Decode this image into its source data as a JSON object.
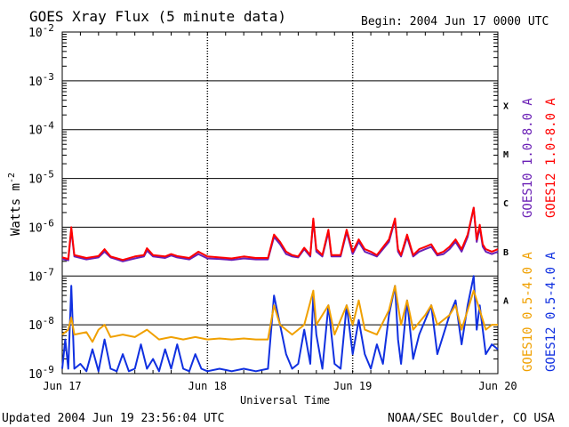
{
  "chart_data": {
    "type": "line",
    "title": "GOES Xray Flux (5 minute data)",
    "begin_label": "Begin:  2004 Jun 17 0000 UTC",
    "ylabel": "Watts m",
    "ylabel_sup": "-2",
    "xlabel": "Universal Time",
    "y_scale": "log",
    "ylim": [
      1e-09,
      0.01
    ],
    "y_ticks": [
      {
        "base": "10",
        "exp": "-2",
        "v": -2
      },
      {
        "base": "10",
        "exp": "-3",
        "v": -3
      },
      {
        "base": "10",
        "exp": "-4",
        "v": -4
      },
      {
        "base": "10",
        "exp": "-5",
        "v": -5
      },
      {
        "base": "10",
        "exp": "-6",
        "v": -6
      },
      {
        "base": "10",
        "exp": "-7",
        "v": -7
      },
      {
        "base": "10",
        "exp": "-8",
        "v": -8
      },
      {
        "base": "10",
        "exp": "-9",
        "v": -9
      }
    ],
    "xlim": [
      0,
      72
    ],
    "x_unit": "hours since 2004 Jun 17 0000 UTC",
    "x_ticks": [
      {
        "label": "Jun 17",
        "v": 0
      },
      {
        "label": "Jun 18",
        "v": 24
      },
      {
        "label": "Jun 19",
        "v": 48
      },
      {
        "label": "Jun 20",
        "v": 72
      }
    ],
    "flare_classes": [
      {
        "label": "X",
        "v": -3.5
      },
      {
        "label": "M",
        "v": -4.5
      },
      {
        "label": "C",
        "v": -5.5
      },
      {
        "label": "B",
        "v": -6.5
      },
      {
        "label": "A",
        "v": -7.5
      }
    ],
    "series": [
      {
        "name": "GOES10 1.0-8.0 A",
        "color": "#6a1fb5",
        "band": "long",
        "points": [
          [
            0,
            -6.65
          ],
          [
            1,
            -6.68
          ],
          [
            1.5,
            -6.05
          ],
          [
            2,
            -6.6
          ],
          [
            4,
            -6.66
          ],
          [
            6,
            -6.62
          ],
          [
            7,
            -6.5
          ],
          [
            8,
            -6.62
          ],
          [
            10,
            -6.7
          ],
          [
            12,
            -6.64
          ],
          [
            13.5,
            -6.6
          ],
          [
            14,
            -6.48
          ],
          [
            15,
            -6.6
          ],
          [
            17,
            -6.63
          ],
          [
            18,
            -6.58
          ],
          [
            19,
            -6.62
          ],
          [
            21,
            -6.66
          ],
          [
            22.5,
            -6.55
          ],
          [
            24,
            -6.64
          ],
          [
            26,
            -6.65
          ],
          [
            28,
            -6.67
          ],
          [
            30,
            -6.64
          ],
          [
            32,
            -6.66
          ],
          [
            34,
            -6.66
          ],
          [
            35,
            -6.2
          ],
          [
            36,
            -6.35
          ],
          [
            37,
            -6.55
          ],
          [
            38,
            -6.6
          ],
          [
            39,
            -6.62
          ],
          [
            40,
            -6.45
          ],
          [
            41,
            -6.6
          ],
          [
            41.5,
            -5.85
          ],
          [
            42,
            -6.5
          ],
          [
            43,
            -6.6
          ],
          [
            44,
            -6.1
          ],
          [
            44.5,
            -6.6
          ],
          [
            46,
            -6.6
          ],
          [
            47,
            -6.1
          ],
          [
            48,
            -6.55
          ],
          [
            49,
            -6.3
          ],
          [
            50,
            -6.5
          ],
          [
            51,
            -6.55
          ],
          [
            52,
            -6.6
          ],
          [
            54,
            -6.3
          ],
          [
            55,
            -5.85
          ],
          [
            55.5,
            -6.5
          ],
          [
            56,
            -6.6
          ],
          [
            57,
            -6.2
          ],
          [
            58,
            -6.6
          ],
          [
            59,
            -6.5
          ],
          [
            60,
            -6.45
          ],
          [
            61,
            -6.4
          ],
          [
            62,
            -6.58
          ],
          [
            63,
            -6.55
          ],
          [
            64,
            -6.45
          ],
          [
            65,
            -6.3
          ],
          [
            66,
            -6.5
          ],
          [
            67,
            -6.2
          ],
          [
            68,
            -5.6
          ],
          [
            68.5,
            -6.3
          ],
          [
            69,
            -6.0
          ],
          [
            69.5,
            -6.4
          ],
          [
            70,
            -6.5
          ],
          [
            71,
            -6.55
          ],
          [
            72,
            -6.5
          ]
        ]
      },
      {
        "name": "GOES12 1.0-8.0 A",
        "color": "#ff0000",
        "band": "long",
        "points": [
          [
            0,
            -6.62
          ],
          [
            1,
            -6.65
          ],
          [
            1.5,
            -6.0
          ],
          [
            2,
            -6.57
          ],
          [
            4,
            -6.63
          ],
          [
            6,
            -6.59
          ],
          [
            7,
            -6.45
          ],
          [
            8,
            -6.6
          ],
          [
            10,
            -6.67
          ],
          [
            12,
            -6.6
          ],
          [
            13.5,
            -6.57
          ],
          [
            14,
            -6.43
          ],
          [
            15,
            -6.57
          ],
          [
            17,
            -6.6
          ],
          [
            18,
            -6.55
          ],
          [
            19,
            -6.59
          ],
          [
            21,
            -6.63
          ],
          [
            22.5,
            -6.5
          ],
          [
            24,
            -6.6
          ],
          [
            26,
            -6.62
          ],
          [
            28,
            -6.64
          ],
          [
            30,
            -6.6
          ],
          [
            32,
            -6.63
          ],
          [
            34,
            -6.63
          ],
          [
            35,
            -6.15
          ],
          [
            36,
            -6.3
          ],
          [
            37,
            -6.5
          ],
          [
            38,
            -6.57
          ],
          [
            39,
            -6.6
          ],
          [
            40,
            -6.42
          ],
          [
            41,
            -6.57
          ],
          [
            41.5,
            -5.82
          ],
          [
            42,
            -6.45
          ],
          [
            43,
            -6.57
          ],
          [
            44,
            -6.05
          ],
          [
            44.5,
            -6.57
          ],
          [
            46,
            -6.57
          ],
          [
            47,
            -6.05
          ],
          [
            48,
            -6.5
          ],
          [
            49,
            -6.25
          ],
          [
            50,
            -6.45
          ],
          [
            51,
            -6.5
          ],
          [
            52,
            -6.57
          ],
          [
            54,
            -6.25
          ],
          [
            55,
            -5.82
          ],
          [
            55.5,
            -6.45
          ],
          [
            56,
            -6.57
          ],
          [
            57,
            -6.15
          ],
          [
            58,
            -6.57
          ],
          [
            59,
            -6.45
          ],
          [
            60,
            -6.4
          ],
          [
            61,
            -6.35
          ],
          [
            62,
            -6.55
          ],
          [
            63,
            -6.5
          ],
          [
            64,
            -6.4
          ],
          [
            65,
            -6.25
          ],
          [
            66,
            -6.45
          ],
          [
            67,
            -6.15
          ],
          [
            68,
            -5.6
          ],
          [
            68.5,
            -6.25
          ],
          [
            69,
            -5.95
          ],
          [
            69.5,
            -6.35
          ],
          [
            70,
            -6.45
          ],
          [
            71,
            -6.5
          ],
          [
            72,
            -6.45
          ]
        ]
      },
      {
        "name": "GOES10 0.5-4.0 A",
        "color": "#f0a000",
        "band": "short",
        "points": [
          [
            0,
            -8.2
          ],
          [
            1,
            -8.1
          ],
          [
            1.5,
            -7.85
          ],
          [
            2,
            -8.2
          ],
          [
            4,
            -8.15
          ],
          [
            5,
            -8.35
          ],
          [
            6,
            -8.1
          ],
          [
            7,
            -8.0
          ],
          [
            8,
            -8.25
          ],
          [
            10,
            -8.2
          ],
          [
            12,
            -8.25
          ],
          [
            14,
            -8.1
          ],
          [
            16,
            -8.3
          ],
          [
            18,
            -8.25
          ],
          [
            20,
            -8.3
          ],
          [
            22,
            -8.25
          ],
          [
            24,
            -8.3
          ],
          [
            26,
            -8.28
          ],
          [
            28,
            -8.3
          ],
          [
            30,
            -8.28
          ],
          [
            32,
            -8.3
          ],
          [
            34,
            -8.3
          ],
          [
            35,
            -7.6
          ],
          [
            36,
            -8.0
          ],
          [
            38,
            -8.2
          ],
          [
            40,
            -8.0
          ],
          [
            41.5,
            -7.3
          ],
          [
            42,
            -8.0
          ],
          [
            44,
            -7.6
          ],
          [
            45,
            -8.2
          ],
          [
            47,
            -7.6
          ],
          [
            48,
            -8.0
          ],
          [
            49,
            -7.5
          ],
          [
            50,
            -8.1
          ],
          [
            52,
            -8.2
          ],
          [
            54,
            -7.7
          ],
          [
            55,
            -7.2
          ],
          [
            56,
            -8.0
          ],
          [
            57,
            -7.5
          ],
          [
            58,
            -8.1
          ],
          [
            60,
            -7.8
          ],
          [
            61,
            -7.6
          ],
          [
            62,
            -8.0
          ],
          [
            64,
            -7.8
          ],
          [
            65,
            -7.6
          ],
          [
            66,
            -8.1
          ],
          [
            67,
            -7.7
          ],
          [
            68,
            -7.3
          ],
          [
            69,
            -7.7
          ],
          [
            70,
            -8.1
          ],
          [
            71,
            -8.0
          ],
          [
            72,
            -8.0
          ]
        ]
      },
      {
        "name": "GOES12 0.5-4.0 A",
        "color": "#1030e0",
        "band": "short",
        "points": [
          [
            0,
            -8.9
          ],
          [
            0.5,
            -8.3
          ],
          [
            1,
            -8.9
          ],
          [
            1.5,
            -7.2
          ],
          [
            2,
            -8.9
          ],
          [
            3,
            -8.8
          ],
          [
            4,
            -8.95
          ],
          [
            5,
            -8.5
          ],
          [
            6,
            -8.95
          ],
          [
            7,
            -8.3
          ],
          [
            8,
            -8.9
          ],
          [
            9,
            -8.95
          ],
          [
            10,
            -8.6
          ],
          [
            11,
            -8.95
          ],
          [
            12,
            -8.9
          ],
          [
            13,
            -8.4
          ],
          [
            14,
            -8.9
          ],
          [
            15,
            -8.7
          ],
          [
            16,
            -8.95
          ],
          [
            17,
            -8.5
          ],
          [
            18,
            -8.9
          ],
          [
            19,
            -8.4
          ],
          [
            20,
            -8.9
          ],
          [
            21,
            -8.95
          ],
          [
            22,
            -8.6
          ],
          [
            23,
            -8.9
          ],
          [
            24,
            -8.95
          ],
          [
            26,
            -8.9
          ],
          [
            28,
            -8.95
          ],
          [
            30,
            -8.9
          ],
          [
            32,
            -8.95
          ],
          [
            34,
            -8.9
          ],
          [
            35,
            -7.4
          ],
          [
            36,
            -8.0
          ],
          [
            37,
            -8.6
          ],
          [
            38,
            -8.9
          ],
          [
            39,
            -8.8
          ],
          [
            40,
            -8.1
          ],
          [
            41,
            -8.8
          ],
          [
            41.5,
            -7.4
          ],
          [
            42,
            -8.2
          ],
          [
            43,
            -8.9
          ],
          [
            44,
            -7.6
          ],
          [
            45,
            -8.8
          ],
          [
            46,
            -8.9
          ],
          [
            47,
            -7.6
          ],
          [
            48,
            -8.6
          ],
          [
            49,
            -7.9
          ],
          [
            50,
            -8.6
          ],
          [
            51,
            -8.9
          ],
          [
            52,
            -8.4
          ],
          [
            53,
            -8.8
          ],
          [
            54,
            -7.8
          ],
          [
            55,
            -7.2
          ],
          [
            55.5,
            -8.3
          ],
          [
            56,
            -8.8
          ],
          [
            57,
            -7.5
          ],
          [
            58,
            -8.7
          ],
          [
            59,
            -8.2
          ],
          [
            60,
            -7.9
          ],
          [
            61,
            -7.6
          ],
          [
            62,
            -8.6
          ],
          [
            63,
            -8.2
          ],
          [
            64,
            -7.8
          ],
          [
            65,
            -7.5
          ],
          [
            66,
            -8.4
          ],
          [
            67,
            -7.6
          ],
          [
            68,
            -7.0
          ],
          [
            68.5,
            -8.1
          ],
          [
            69,
            -7.6
          ],
          [
            70,
            -8.6
          ],
          [
            71,
            -8.4
          ],
          [
            72,
            -8.5
          ]
        ]
      }
    ]
  },
  "footer": {
    "updated": "Updated 2004 Jun 19 23:56:04 UTC",
    "credit": "NOAA/SEC Boulder, CO USA"
  }
}
